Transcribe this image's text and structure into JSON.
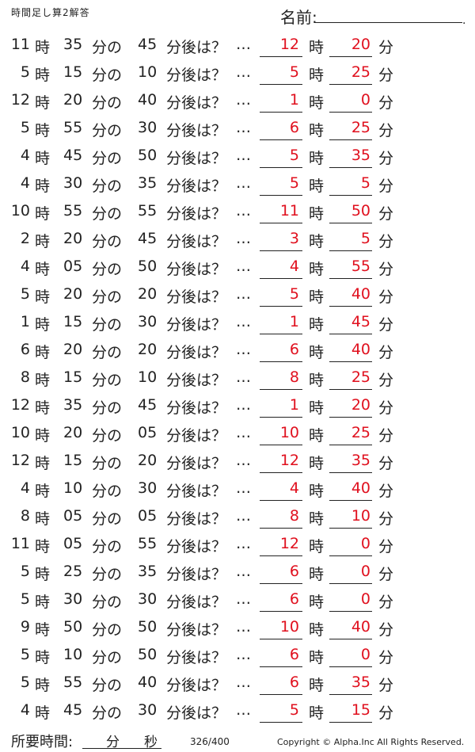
{
  "header": {
    "title": "時間足し算2解答",
    "name_label": "名前:",
    "name_dot": "."
  },
  "labels": {
    "hour": "時",
    "minute": "分",
    "of": "分の",
    "after": "分後は？",
    "ellipsis": "…"
  },
  "colors": {
    "answer": "#e0101e"
  },
  "problems": [
    {
      "h": "11",
      "m": "35",
      "add": "45",
      "ah": "12",
      "am": "20"
    },
    {
      "h": "5",
      "m": "15",
      "add": "10",
      "ah": "5",
      "am": "25"
    },
    {
      "h": "12",
      "m": "20",
      "add": "40",
      "ah": "1",
      "am": "0"
    },
    {
      "h": "5",
      "m": "55",
      "add": "30",
      "ah": "6",
      "am": "25"
    },
    {
      "h": "4",
      "m": "45",
      "add": "50",
      "ah": "5",
      "am": "35"
    },
    {
      "h": "4",
      "m": "30",
      "add": "35",
      "ah": "5",
      "am": "5"
    },
    {
      "h": "10",
      "m": "55",
      "add": "55",
      "ah": "11",
      "am": "50"
    },
    {
      "h": "2",
      "m": "20",
      "add": "45",
      "ah": "3",
      "am": "5"
    },
    {
      "h": "4",
      "m": "05",
      "add": "50",
      "ah": "4",
      "am": "55"
    },
    {
      "h": "5",
      "m": "20",
      "add": "20",
      "ah": "5",
      "am": "40"
    },
    {
      "h": "1",
      "m": "15",
      "add": "30",
      "ah": "1",
      "am": "45"
    },
    {
      "h": "6",
      "m": "20",
      "add": "20",
      "ah": "6",
      "am": "40"
    },
    {
      "h": "8",
      "m": "15",
      "add": "10",
      "ah": "8",
      "am": "25"
    },
    {
      "h": "12",
      "m": "35",
      "add": "45",
      "ah": "1",
      "am": "20"
    },
    {
      "h": "10",
      "m": "20",
      "add": "05",
      "ah": "10",
      "am": "25"
    },
    {
      "h": "12",
      "m": "15",
      "add": "20",
      "ah": "12",
      "am": "35"
    },
    {
      "h": "4",
      "m": "10",
      "add": "30",
      "ah": "4",
      "am": "40"
    },
    {
      "h": "8",
      "m": "05",
      "add": "05",
      "ah": "8",
      "am": "10"
    },
    {
      "h": "11",
      "m": "05",
      "add": "55",
      "ah": "12",
      "am": "0"
    },
    {
      "h": "5",
      "m": "25",
      "add": "35",
      "ah": "6",
      "am": "0"
    },
    {
      "h": "5",
      "m": "30",
      "add": "30",
      "ah": "6",
      "am": "0"
    },
    {
      "h": "9",
      "m": "50",
      "add": "50",
      "ah": "10",
      "am": "40"
    },
    {
      "h": "5",
      "m": "10",
      "add": "50",
      "ah": "6",
      "am": "0"
    },
    {
      "h": "5",
      "m": "55",
      "add": "40",
      "ah": "6",
      "am": "35"
    },
    {
      "h": "4",
      "m": "45",
      "add": "30",
      "ah": "5",
      "am": "15"
    }
  ],
  "footer": {
    "required_time_label": "所要時間:",
    "minute_unit": "分",
    "second_unit": "秒",
    "page_number": "326/400",
    "copyright": "Copyright ©  Alpha.Inc All Rights Reserved."
  }
}
